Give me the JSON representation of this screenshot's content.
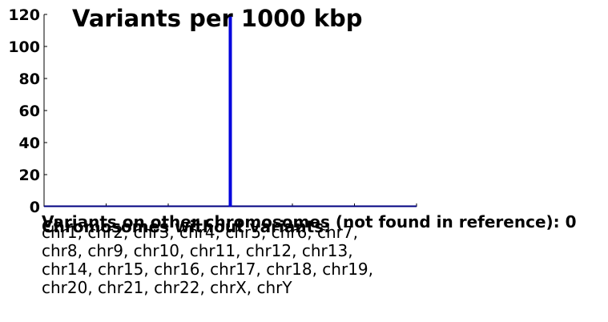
{
  "chart_data": {
    "type": "line",
    "title": "Variants per 1000 kbp",
    "xlabel": "",
    "ylabel": "",
    "ylim": [
      0,
      120
    ],
    "xlim": [
      0,
      6
    ],
    "y_ticks": [
      0,
      20,
      40,
      60,
      80,
      100,
      120
    ],
    "x_ticks": [
      0,
      1,
      2,
      3,
      4,
      5,
      6
    ],
    "grid": false,
    "baseline": {
      "x": [
        0,
        6
      ],
      "y": [
        0,
        0
      ],
      "color": "#000080"
    },
    "spike": {
      "x": 3,
      "y": [
        0,
        120
      ],
      "color": "#0000dd"
    },
    "colors": {
      "axis": "#000000",
      "baseline": "#000080",
      "spike": "#0000dd"
    }
  },
  "other_chromosomes": {
    "text": "Variants on other chromosomes (not found in reference): 0"
  },
  "without_variants": {
    "heading": "Chromosomes without variants:",
    "list": "chr1, chr2, chr3, chr4, chr5, chr6, chr7, chr8, chr9, chr10, chr11, chr12, chr13, chr14, chr15, chr16, chr17, chr18, chr19, chr20, chr21, chr22, chrX, chrY"
  }
}
